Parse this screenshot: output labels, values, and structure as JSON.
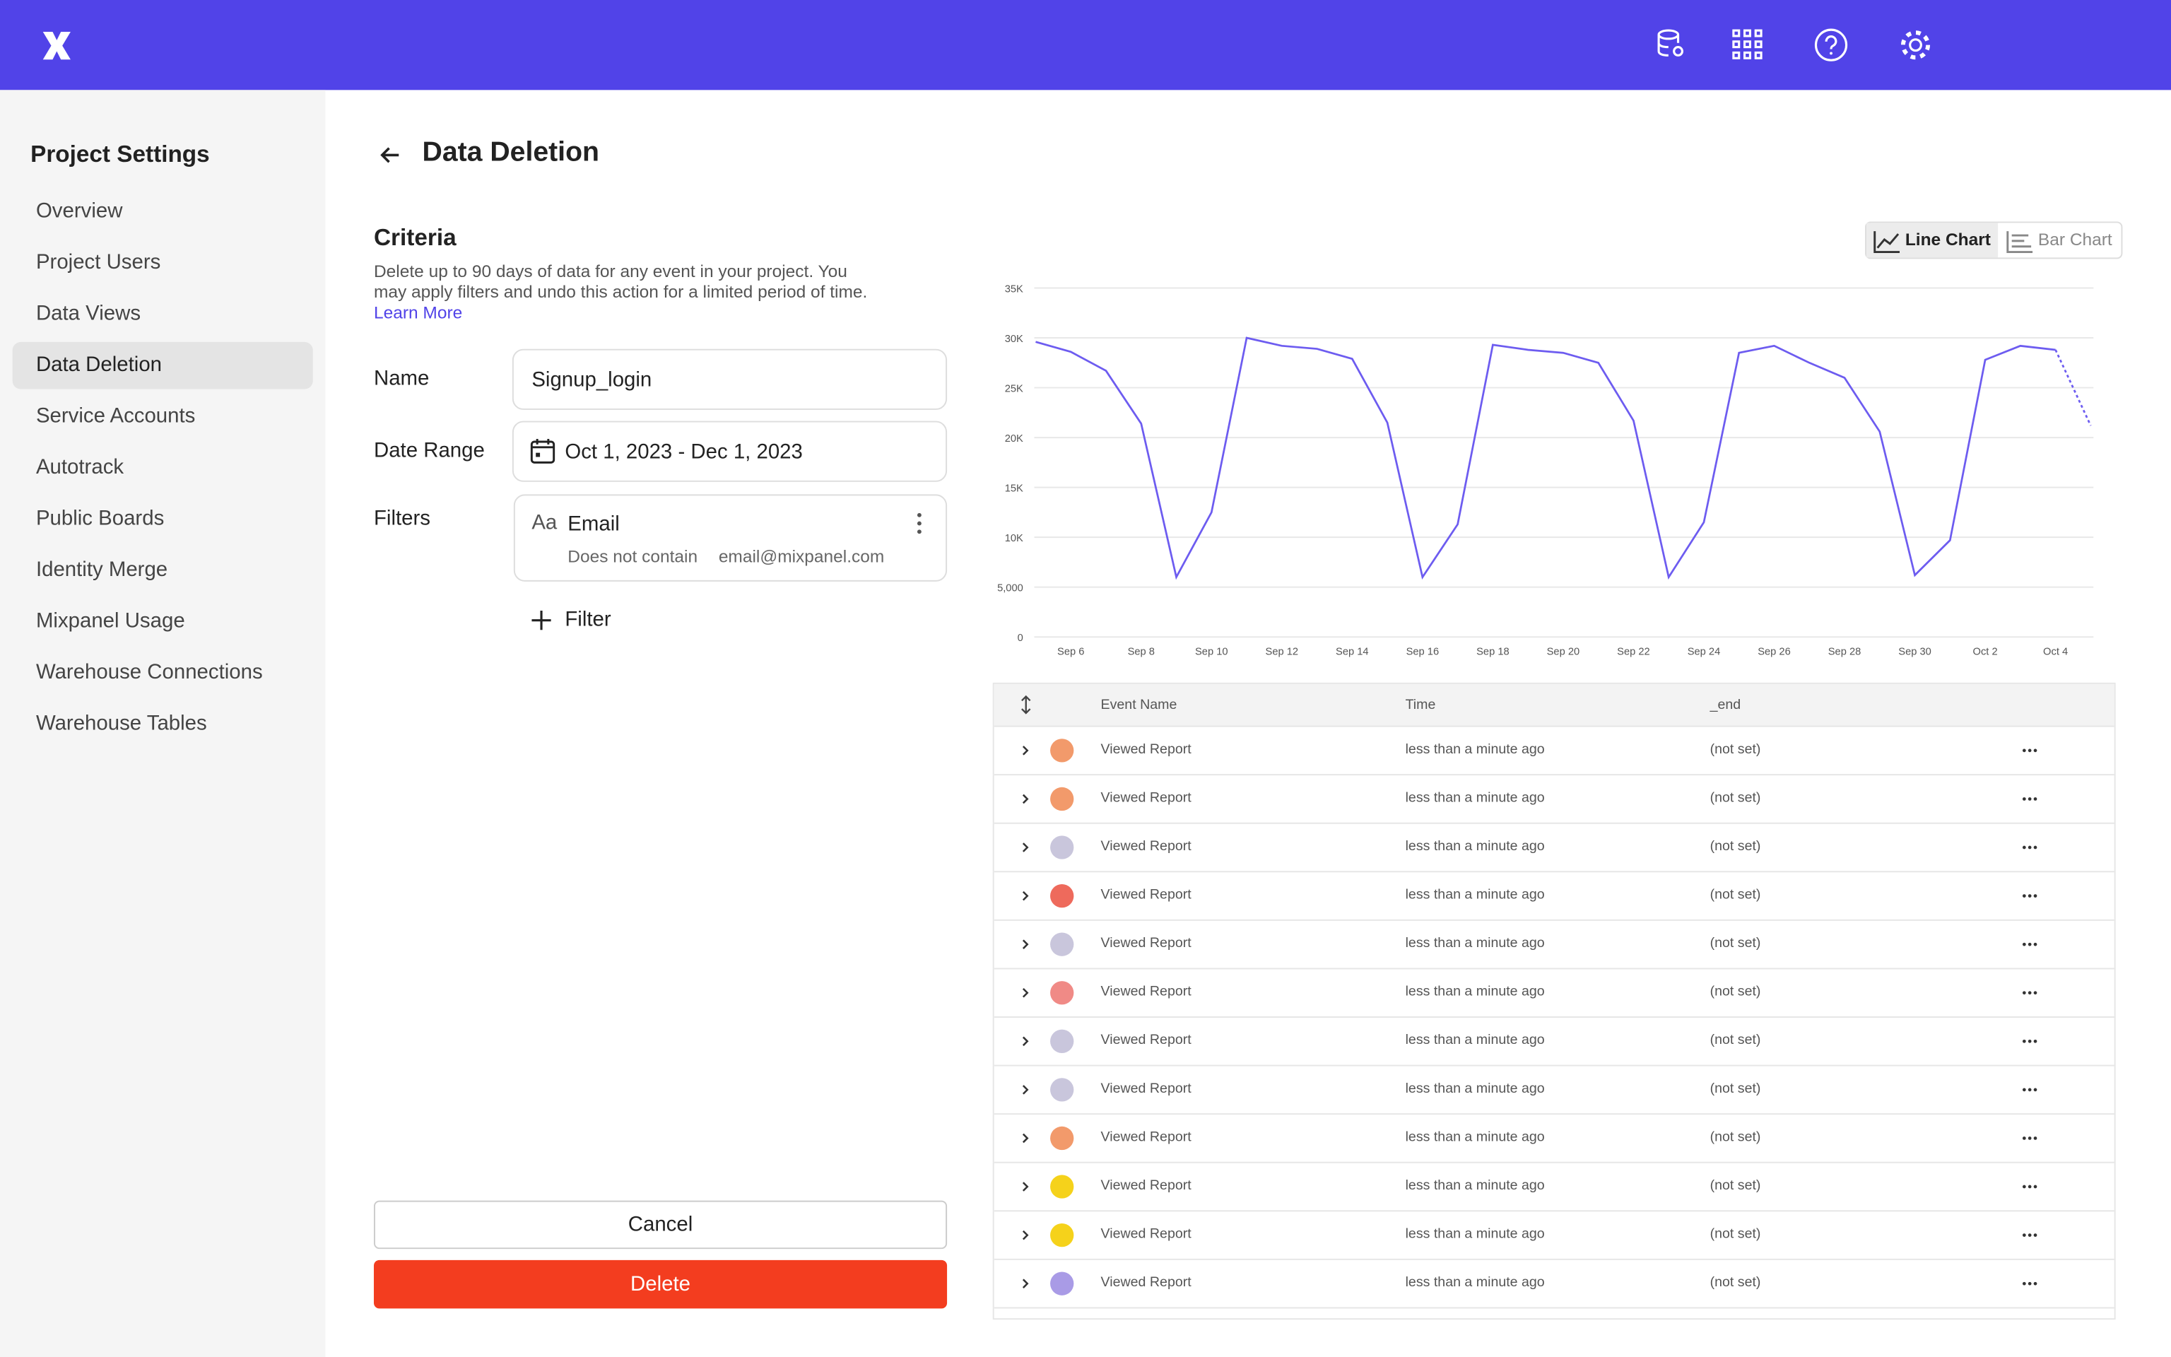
{
  "topbar": {
    "brand": "mixpanel"
  },
  "sidebar": {
    "title": "Project Settings",
    "active": 3,
    "items": [
      "Overview",
      "Project Users",
      "Data Views",
      "Data Deletion",
      "Service Accounts",
      "Autotrack",
      "Public Boards",
      "Identity Merge",
      "Mixpanel Usage",
      "Warehouse Connections",
      "Warehouse Tables"
    ]
  },
  "page": {
    "title": "Data Deletion"
  },
  "criteria": {
    "title": "Criteria",
    "description": "Delete up to 90 days of data for any event in your project. You may apply filters and undo this action for a limited period of time.",
    "link": "Learn More"
  },
  "form": {
    "name_label": "Name",
    "name_value": "Signup_login",
    "date_label": "Date Range",
    "date_value": "Oct 1, 2023 - Dec 1, 2023",
    "filters_label": "Filters",
    "filter_type": "Aa",
    "filter_property": "Email",
    "filter_operator": "Does not contain",
    "filter_value": "email@mixpanel.com",
    "add_filter": "Filter"
  },
  "buttons": {
    "cancel": "Cancel",
    "delete": "Delete"
  },
  "chart_toggle": {
    "options": [
      "Line Chart",
      "Bar Chart"
    ],
    "active": 0
  },
  "chart_data": {
    "type": "line",
    "color": "#6d5cf0",
    "grid": true,
    "partial_last": true,
    "categories": [
      null,
      "Sep 6",
      null,
      "Sep 8",
      null,
      "Sep 10",
      null,
      "Sep 12",
      null,
      "Sep 14",
      null,
      "Sep 16",
      null,
      "Sep 18",
      null,
      "Sep 20",
      null,
      "Sep 22",
      null,
      "Sep 24",
      null,
      "Sep 26",
      null,
      "Sep 28",
      null,
      "Sep 30",
      null,
      "Oct 2",
      null,
      "Oct 4",
      null
    ],
    "values": [
      29600,
      28600,
      26700,
      21400,
      6000,
      12500,
      30000,
      29200,
      28900,
      27900,
      21500,
      6000,
      11300,
      29300,
      28800,
      28500,
      27500,
      21700,
      6000,
      11500,
      28500,
      29200,
      27500,
      26000,
      20600,
      6200,
      9700,
      27800,
      29200,
      28800,
      21200
    ],
    "ylim": [
      0,
      35000
    ],
    "yticks": [
      0,
      {
        "value": 5000,
        "label": "5,000"
      },
      {
        "value": 10000,
        "label": "10K"
      },
      {
        "value": 15000,
        "label": "15K"
      },
      {
        "value": 20000,
        "label": "20K"
      },
      {
        "value": 25000,
        "label": "25K"
      },
      {
        "value": 30000,
        "label": "30K"
      },
      {
        "value": 35000,
        "label": "35K"
      }
    ]
  },
  "table": {
    "columns": [
      "Event Name",
      "Time",
      "_end"
    ],
    "rows": [
      [
        "Viewed Report",
        "less than a minute ago",
        "(not set)"
      ],
      [
        "Viewed Report",
        "less than a minute ago",
        "(not set)"
      ],
      [
        "Viewed Report",
        "less than a minute ago",
        "(not set)"
      ],
      [
        "Viewed Report",
        "less than a minute ago",
        "(not set)"
      ],
      [
        "Viewed Report",
        "less than a minute ago",
        "(not set)"
      ],
      [
        "Viewed Report",
        "less than a minute ago",
        "(not set)"
      ],
      [
        "Viewed Report",
        "less than a minute ago",
        "(not set)"
      ],
      [
        "Viewed Report",
        "less than a minute ago",
        "(not set)"
      ],
      [
        "Viewed Report",
        "less than a minute ago",
        "(not set)"
      ],
      [
        "Viewed Report",
        "less than a minute ago",
        "(not set)"
      ],
      [
        "Viewed Report",
        "less than a minute ago",
        "(not set)"
      ],
      [
        "Viewed Report",
        "less than a minute ago",
        "(not set)"
      ]
    ]
  }
}
